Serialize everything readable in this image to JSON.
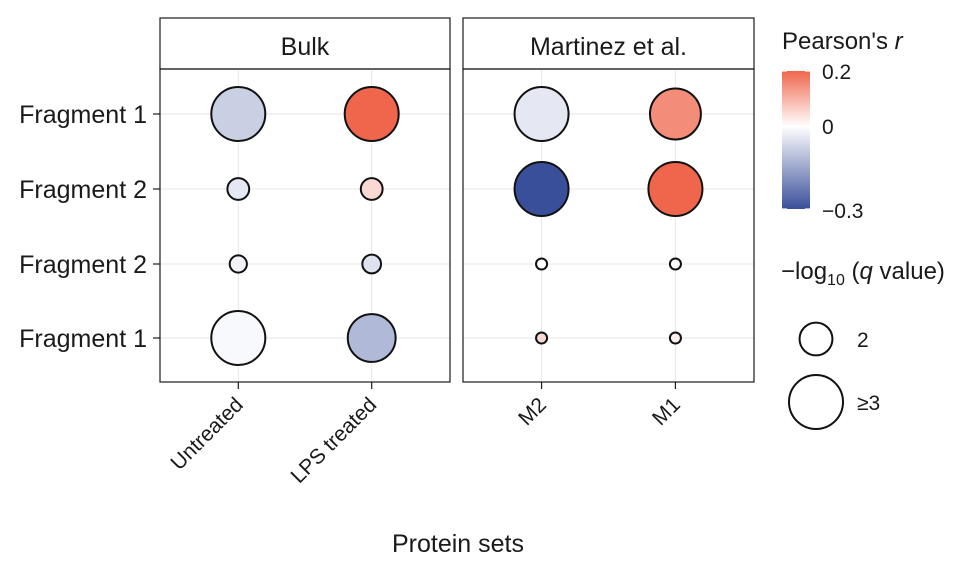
{
  "chart_data": {
    "type": "scatter",
    "subtype": "dot-matrix",
    "xlabel": "Protein sets",
    "y_categories": [
      "Fragment 1",
      "Fragment 2",
      "Fragment 2",
      "Fragment 1"
    ],
    "facets": [
      {
        "title": "Bulk",
        "categories": [
          "Untreated",
          "LPS treated"
        ],
        "points": [
          {
            "x": "Untreated",
            "row": 0,
            "r": -0.08,
            "q": 3
          },
          {
            "x": "LPS treated",
            "row": 0,
            "r": 0.2,
            "q": 3
          },
          {
            "x": "Untreated",
            "row": 1,
            "r": -0.04,
            "q": 0.9
          },
          {
            "x": "LPS treated",
            "row": 1,
            "r": 0.05,
            "q": 0.9
          },
          {
            "x": "Untreated",
            "row": 2,
            "r": -0.02,
            "q": 0.6
          },
          {
            "x": "LPS treated",
            "row": 2,
            "r": -0.05,
            "q": 0.7
          },
          {
            "x": "Untreated",
            "row": 3,
            "r": -0.01,
            "q": 3
          },
          {
            "x": "LPS treated",
            "row": 3,
            "r": -0.12,
            "q": 2.6
          }
        ]
      },
      {
        "title": "Martinez et al.",
        "categories": [
          "M2",
          "M1"
        ],
        "points": [
          {
            "x": "M2",
            "row": 0,
            "r": -0.04,
            "q": 3
          },
          {
            "x": "M1",
            "row": 0,
            "r": 0.15,
            "q": 2.8
          },
          {
            "x": "M2",
            "row": 1,
            "r": -0.3,
            "q": 3
          },
          {
            "x": "M1",
            "row": 1,
            "r": 0.2,
            "q": 3
          },
          {
            "x": "M2",
            "row": 2,
            "r": 0.0,
            "q": 0.2
          },
          {
            "x": "M1",
            "row": 2,
            "r": 0.0,
            "q": 0.2
          },
          {
            "x": "M2",
            "row": 3,
            "r": 0.05,
            "q": 0.2
          },
          {
            "x": "M1",
            "row": 3,
            "r": 0.02,
            "q": 0.2
          }
        ]
      }
    ],
    "color_legend": {
      "title_main": "Pearson's ",
      "title_italic": "r",
      "min": -0.3,
      "max": 0.2,
      "ticks": [
        {
          "value": 0.2,
          "label": "0.2"
        },
        {
          "value": 0,
          "label": "0"
        },
        {
          "value": -0.3,
          "label": "−0.3"
        }
      ],
      "colors": {
        "negative": "#3a4f9a",
        "zero": "#ffffff",
        "positive": "#f0664d"
      }
    },
    "size_legend": {
      "title_prefix": "−log",
      "title_sub": "10",
      "title_open": " (",
      "title_italic": "q",
      "title_suffix": " value)",
      "entries": [
        {
          "q": 2,
          "label": "2"
        },
        {
          "q": 3,
          "label": "≥3"
        }
      ]
    },
    "grid": true
  }
}
